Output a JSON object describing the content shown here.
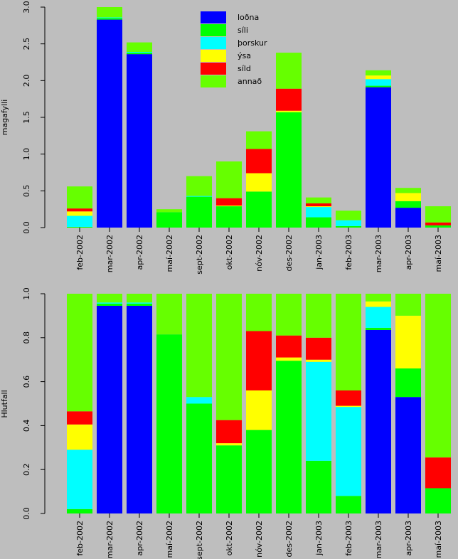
{
  "chart_data": [
    {
      "type": "bar",
      "stacked": true,
      "title": "",
      "xlabel": "",
      "ylabel": "magafylli",
      "ylim": [
        0,
        3.0
      ],
      "yticks": [
        "0.0",
        "0.5",
        "1.0",
        "1.5",
        "2.0",
        "2.5",
        "3.0"
      ],
      "ytick_values": [
        0,
        0.5,
        1.0,
        1.5,
        2.0,
        2.5,
        3.0
      ],
      "categories": [
        "feb-2002",
        "mar-2002",
        "apr-2002",
        "maí-2002",
        "sept-2002",
        "okt-2002",
        "nóv-2002",
        "des-2002",
        "jan-2003",
        "feb-2003",
        "mar-2003",
        "apr-2003",
        "maí-2003"
      ],
      "legend": {
        "placement": "top-center"
      },
      "series": [
        {
          "name": "loðna",
          "color": "#0000ff",
          "values": [
            0,
            2.83,
            2.36,
            0,
            0,
            0,
            0,
            0,
            0,
            0,
            1.91,
            0.27,
            0
          ]
        },
        {
          "name": "síli",
          "color": "#00ff00",
          "values": [
            0.01,
            0.02,
            0.02,
            0.21,
            0.42,
            0.29,
            0.49,
            1.57,
            0.14,
            0.02,
            0.02,
            0.09,
            0.03
          ]
        },
        {
          "name": "þorskur",
          "color": "#00ffff",
          "values": [
            0.15,
            0.01,
            0.01,
            0,
            0.01,
            0,
            0,
            0,
            0.14,
            0.08,
            0.09,
            0,
            0
          ]
        },
        {
          "name": "ýsa",
          "color": "#ffff00",
          "values": [
            0.06,
            0,
            0,
            0,
            0,
            0.01,
            0.25,
            0.02,
            0.01,
            0,
            0.05,
            0.11,
            0
          ]
        },
        {
          "name": "síld",
          "color": "#ff0000",
          "values": [
            0.04,
            0,
            0,
            0,
            0,
            0.1,
            0.33,
            0.3,
            0.04,
            0,
            0,
            0,
            0.04
          ]
        },
        {
          "name": "annað",
          "color": "#66ff00",
          "values": [
            0.3,
            0.14,
            0.13,
            0.04,
            0.27,
            0.5,
            0.24,
            0.49,
            0.08,
            0.13,
            0.07,
            0.07,
            0.22
          ]
        }
      ]
    },
    {
      "type": "bar",
      "stacked": true,
      "title": "",
      "xlabel": "",
      "ylabel": "Hlutfall",
      "ylim": [
        0,
        1.0
      ],
      "yticks": [
        "0.0",
        "0.2",
        "0.4",
        "0.6",
        "0.8",
        "1.0"
      ],
      "ytick_values": [
        0,
        0.2,
        0.4,
        0.6,
        0.8,
        1.0
      ],
      "categories": [
        "feb-2002",
        "mar-2002",
        "apr-2002",
        "maí-2002",
        "sept-2002",
        "okt-2002",
        "nóv-2002",
        "des-2002",
        "jan-2003",
        "feb-2003",
        "mar-2003",
        "apr-2003",
        "maí-2003"
      ],
      "series": [
        {
          "name": "loðna",
          "color": "#0000ff",
          "values": [
            0,
            0.945,
            0.945,
            0,
            0,
            0,
            0,
            0,
            0,
            0,
            0.835,
            0.53,
            0
          ]
        },
        {
          "name": "síli",
          "color": "#00ff00",
          "values": [
            0.02,
            0.01,
            0.01,
            0.815,
            0.5,
            0.31,
            0.38,
            0.695,
            0.24,
            0.08,
            0.01,
            0.13,
            0.115
          ]
        },
        {
          "name": "þorskur",
          "color": "#00ffff",
          "values": [
            0.27,
            0.005,
            0.005,
            0,
            0.03,
            0,
            0,
            0,
            0.45,
            0.405,
            0.095,
            0,
            0
          ]
        },
        {
          "name": "ýsa",
          "color": "#ffff00",
          "values": [
            0.115,
            0,
            0,
            0,
            0,
            0.01,
            0.18,
            0.015,
            0.01,
            0.005,
            0.025,
            0.24,
            0
          ]
        },
        {
          "name": "síld",
          "color": "#ff0000",
          "values": [
            0.06,
            0,
            0,
            0,
            0,
            0.105,
            0.27,
            0.1,
            0.1,
            0.07,
            0,
            0,
            0.14
          ]
        },
        {
          "name": "annað",
          "color": "#66ff00",
          "values": [
            0.535,
            0.04,
            0.04,
            0.185,
            0.47,
            0.575,
            0.17,
            0.19,
            0.2,
            0.44,
            0.035,
            0.1,
            0.745
          ]
        }
      ]
    }
  ]
}
